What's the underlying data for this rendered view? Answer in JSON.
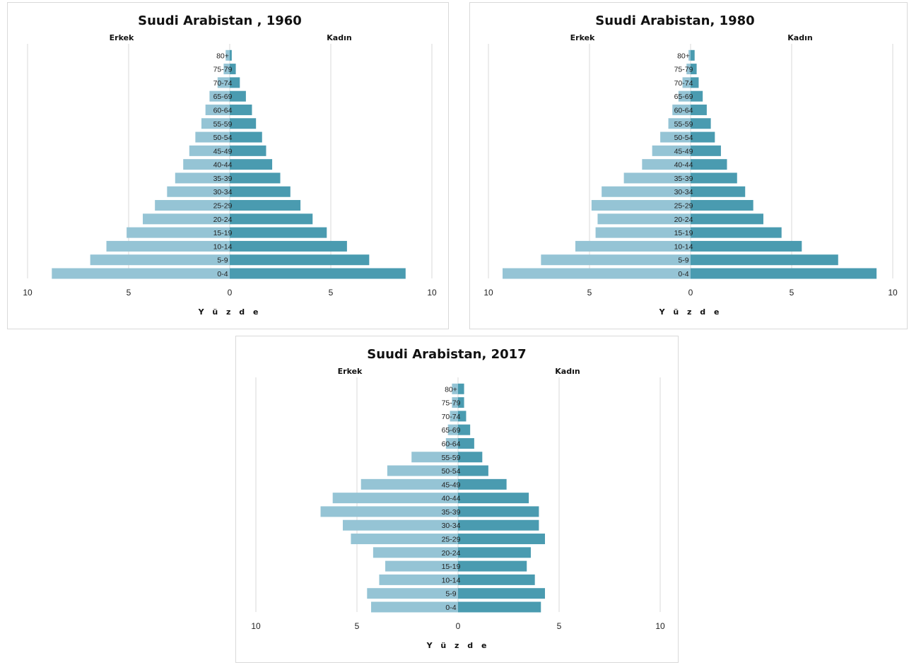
{
  "colors": {
    "male": "#95c4d5",
    "female": "#4a9bb0",
    "grid": "#d9d9d9"
  },
  "chart_data": [
    {
      "type": "bar",
      "orientation": "horizontal-population-pyramid",
      "title": "Suudi Arabistan , 1960",
      "left_label": "Erkek",
      "right_label": "Kadın",
      "xlabel": "Y ü z d e",
      "xlim": [
        -10,
        10
      ],
      "x_ticks": [
        "10",
        "5",
        "0",
        "5",
        "10"
      ],
      "grid": true,
      "categories": [
        "0-4",
        "5-9",
        "10-14",
        "15-19",
        "20-24",
        "25-29",
        "30-34",
        "35-39",
        "40-44",
        "45-49",
        "50-54",
        "55-59",
        "60-64",
        "65-69",
        "70-74",
        "75-79",
        "80+"
      ],
      "series": [
        {
          "name": "Erkek",
          "values": [
            8.8,
            6.9,
            6.1,
            5.1,
            4.3,
            3.7,
            3.1,
            2.7,
            2.3,
            2.0,
            1.7,
            1.4,
            1.2,
            1.0,
            0.6,
            0.3,
            0.2
          ]
        },
        {
          "name": "Kadın",
          "values": [
            8.7,
            6.9,
            5.8,
            4.8,
            4.1,
            3.5,
            3.0,
            2.5,
            2.1,
            1.8,
            1.6,
            1.3,
            1.1,
            0.8,
            0.5,
            0.3,
            0.1
          ]
        }
      ]
    },
    {
      "type": "bar",
      "orientation": "horizontal-population-pyramid",
      "title": "Suudi Arabistan, 1980",
      "left_label": "Erkek",
      "right_label": "Kadın",
      "xlabel": "Y ü z d e",
      "xlim": [
        -10,
        10
      ],
      "x_ticks": [
        "10",
        "5",
        "0",
        "5",
        "10"
      ],
      "grid": true,
      "categories": [
        "0-4",
        "5-9",
        "10-14",
        "15-19",
        "20-24",
        "25-29",
        "30-34",
        "35-39",
        "40-44",
        "45-49",
        "50-54",
        "55-59",
        "60-64",
        "65-69",
        "70-74",
        "75-79",
        "80+"
      ],
      "series": [
        {
          "name": "Erkek",
          "values": [
            9.3,
            7.4,
            5.7,
            4.7,
            4.6,
            4.9,
            4.4,
            3.3,
            2.4,
            1.9,
            1.5,
            1.1,
            0.9,
            0.6,
            0.4,
            0.2,
            0.1
          ]
        },
        {
          "name": "Kadın",
          "values": [
            9.2,
            7.3,
            5.5,
            4.5,
            3.6,
            3.1,
            2.7,
            2.3,
            1.8,
            1.5,
            1.2,
            1.0,
            0.8,
            0.6,
            0.4,
            0.3,
            0.2
          ]
        }
      ]
    },
    {
      "type": "bar",
      "orientation": "horizontal-population-pyramid",
      "title": "Suudi Arabistan, 2017",
      "left_label": "Erkek",
      "right_label": "Kadın",
      "xlabel": "Y ü z d e",
      "xlim": [
        -10,
        10
      ],
      "x_ticks": [
        "10",
        "5",
        "0",
        "5",
        "10"
      ],
      "grid": true,
      "categories": [
        "0-4",
        "5-9",
        "10-14",
        "15-19",
        "20-24",
        "25-29",
        "30-34",
        "35-39",
        "40-44",
        "45-49",
        "50-54",
        "55-59",
        "60-64",
        "65-69",
        "70-74",
        "75-79",
        "80+"
      ],
      "series": [
        {
          "name": "Erkek",
          "values": [
            4.3,
            4.5,
            3.9,
            3.6,
            4.2,
            5.3,
            5.7,
            6.8,
            6.2,
            4.8,
            3.5,
            2.3,
            0.6,
            0.5,
            0.4,
            0.3,
            0.3
          ]
        },
        {
          "name": "Kadın",
          "values": [
            4.1,
            4.3,
            3.8,
            3.4,
            3.6,
            4.3,
            4.0,
            4.0,
            3.5,
            2.4,
            1.5,
            1.2,
            0.8,
            0.6,
            0.4,
            0.3,
            0.3
          ]
        }
      ]
    }
  ]
}
